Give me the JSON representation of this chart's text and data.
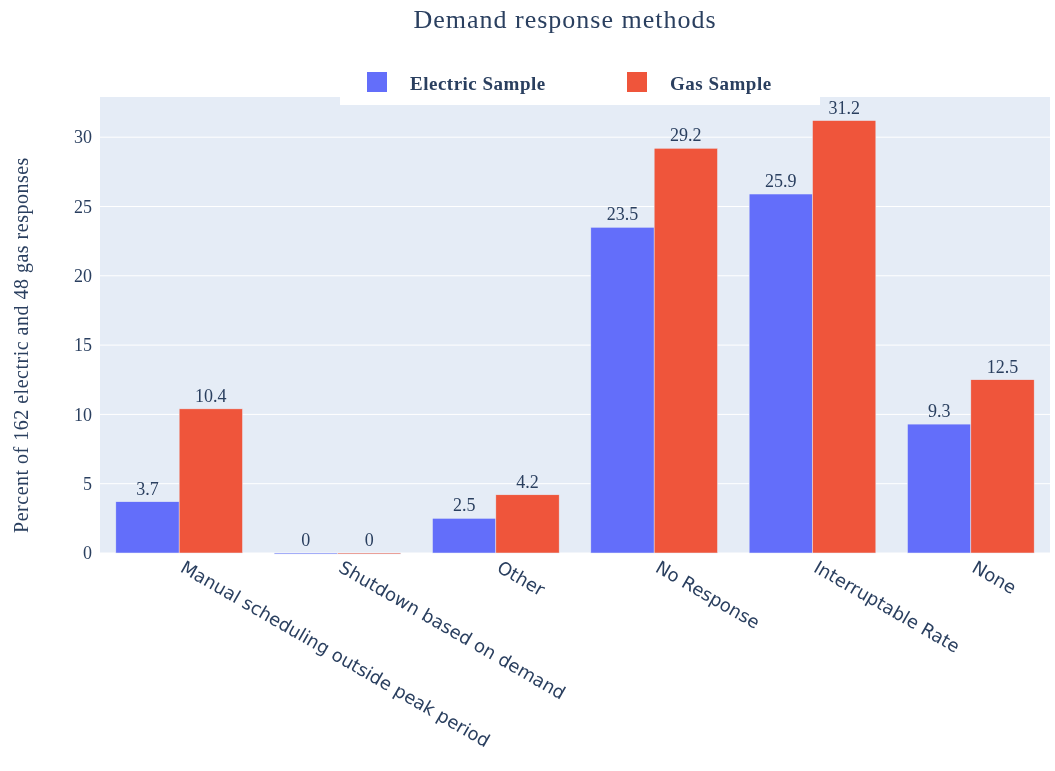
{
  "chart_data": {
    "type": "bar",
    "title": "Demand response methods",
    "ylabel": "Percent of 162 electric and 48 gas responses",
    "categories": [
      "Manual scheduling outside peak period",
      "Shutdown based on demand",
      "Other",
      "No Response",
      "Interruptable Rate",
      "None"
    ],
    "series": [
      {
        "name": "Electric Sample",
        "color": "#636efa",
        "values": [
          3.7,
          0,
          2.5,
          23.5,
          25.9,
          9.3
        ]
      },
      {
        "name": "Gas Sample",
        "color": "#ef553b",
        "values": [
          10.4,
          0,
          4.2,
          29.2,
          31.2,
          12.5
        ]
      }
    ],
    "ylim": [
      0,
      32.9
    ],
    "yticks": [
      0,
      5,
      10,
      15,
      20,
      25,
      30
    ],
    "grid": "y",
    "legend": "top",
    "data_labels": true
  }
}
